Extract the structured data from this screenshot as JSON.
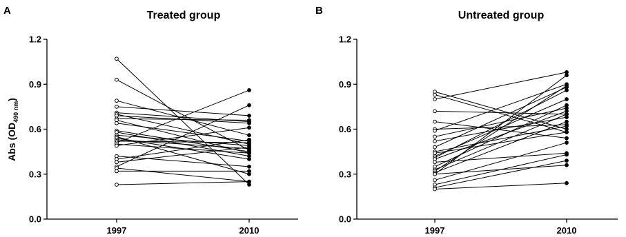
{
  "chart_data": [
    {
      "type": "line",
      "panel_letter": "A",
      "title": "Treated group",
      "ylabel": {
        "main": "Abs (OD",
        "sub": "490 nm",
        "end": ")"
      },
      "xlabel": "",
      "categories": [
        "1997",
        "2010"
      ],
      "ylim": [
        0,
        1.2
      ],
      "yticks": [
        "0.0",
        "0.3",
        "0.6",
        "0.9",
        "1.2"
      ],
      "grid": false,
      "markers": {
        "1997": "open-circle",
        "2010": "filled-circle"
      },
      "pairs": [
        [
          1.07,
          0.23
        ],
        [
          0.93,
          0.46
        ],
        [
          0.79,
          0.56
        ],
        [
          0.75,
          0.69
        ],
        [
          0.71,
          0.65
        ],
        [
          0.7,
          0.5
        ],
        [
          0.69,
          0.64
        ],
        [
          0.67,
          0.66
        ],
        [
          0.66,
          0.44
        ],
        [
          0.64,
          0.52
        ],
        [
          0.59,
          0.45
        ],
        [
          0.58,
          0.42
        ],
        [
          0.56,
          0.49
        ],
        [
          0.55,
          0.3
        ],
        [
          0.54,
          0.4
        ],
        [
          0.53,
          0.47
        ],
        [
          0.52,
          0.51
        ],
        [
          0.51,
          0.86
        ],
        [
          0.5,
          0.44
        ],
        [
          0.49,
          0.61
        ],
        [
          0.42,
          0.35
        ],
        [
          0.4,
          0.53
        ],
        [
          0.38,
          0.48
        ],
        [
          0.35,
          0.76
        ],
        [
          0.34,
          0.25
        ],
        [
          0.32,
          0.32
        ],
        [
          0.23,
          0.25
        ]
      ]
    },
    {
      "type": "line",
      "panel_letter": "B",
      "title": "Untreated group",
      "ylabel": null,
      "xlabel": "",
      "categories": [
        "1997",
        "2010"
      ],
      "ylim": [
        0,
        1.2
      ],
      "yticks": [
        "0.0",
        "0.3",
        "0.6",
        "0.9",
        "1.2"
      ],
      "grid": false,
      "markers": {
        "1997": "open-circle",
        "2010": "filled-circle"
      },
      "pairs": [
        [
          0.85,
          0.6
        ],
        [
          0.83,
          0.58
        ],
        [
          0.8,
          0.98
        ],
        [
          0.72,
          0.7
        ],
        [
          0.65,
          0.54
        ],
        [
          0.6,
          0.63
        ],
        [
          0.59,
          0.9
        ],
        [
          0.55,
          0.74
        ],
        [
          0.52,
          0.68
        ],
        [
          0.48,
          0.88
        ],
        [
          0.45,
          0.62
        ],
        [
          0.42,
          0.8
        ],
        [
          0.41,
          0.86
        ],
        [
          0.4,
          0.72
        ],
        [
          0.38,
          0.44
        ],
        [
          0.35,
          0.76
        ],
        [
          0.33,
          0.7
        ],
        [
          0.32,
          0.89
        ],
        [
          0.31,
          0.65
        ],
        [
          0.3,
          0.36
        ],
        [
          0.26,
          0.51
        ],
        [
          0.23,
          0.43
        ],
        [
          0.21,
          0.39
        ],
        [
          0.2,
          0.24
        ],
        [
          0.3,
          0.96
        ],
        [
          0.44,
          0.58
        ]
      ]
    }
  ]
}
